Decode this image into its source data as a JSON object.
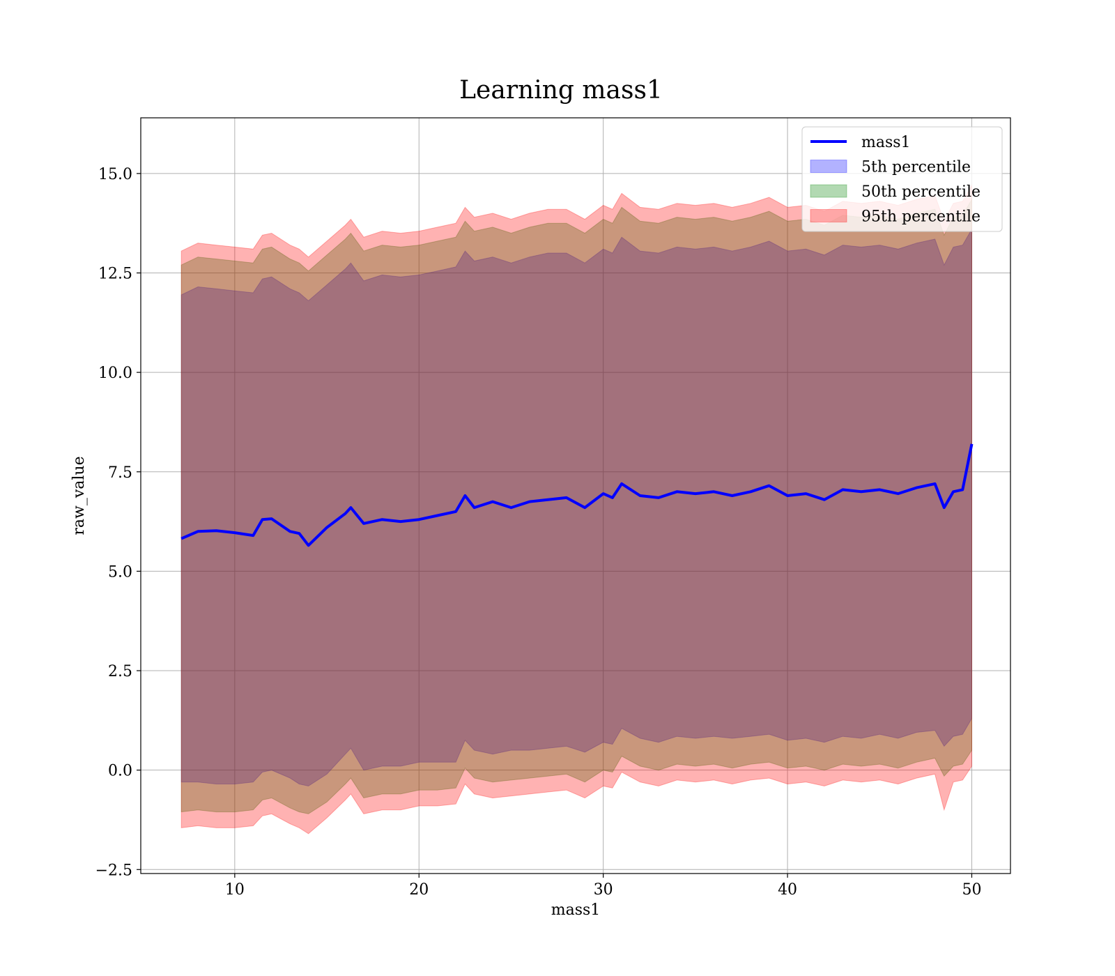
{
  "chart_data": {
    "type": "area",
    "title": "Learning mass1",
    "xlabel": "mass1",
    "ylabel": "raw_value",
    "xlim": [
      4.9,
      52.1
    ],
    "ylim": [
      -2.6,
      16.4
    ],
    "x_ticks": [
      10,
      20,
      30,
      40,
      50
    ],
    "x_tick_labels": [
      "10",
      "20",
      "30",
      "40",
      "50"
    ],
    "y_ticks": [
      -2.5,
      0.0,
      2.5,
      5.0,
      7.5,
      10.0,
      12.5,
      15.0
    ],
    "y_tick_labels": [
      "−2.5",
      "0.0",
      "2.5",
      "5.0",
      "7.5",
      "10.0",
      "12.5",
      "15.0"
    ],
    "grid": true,
    "legend_position": "top-right",
    "x": [
      7.1,
      8.0,
      9.0,
      10.0,
      11.0,
      11.5,
      12.0,
      13.0,
      13.5,
      14.0,
      15.0,
      16.0,
      16.3,
      17.0,
      18.0,
      19.0,
      20.0,
      21.0,
      22.0,
      22.5,
      23.0,
      24.0,
      25.0,
      26.0,
      27.0,
      28.0,
      29.0,
      30.0,
      30.5,
      31.0,
      32.0,
      33.0,
      34.0,
      35.0,
      36.0,
      37.0,
      38.0,
      39.0,
      40.0,
      41.0,
      42.0,
      43.0,
      44.0,
      45.0,
      46.0,
      47.0,
      48.0,
      48.5,
      49.0,
      49.5,
      50.0
    ],
    "series": [
      {
        "name": "mass1",
        "kind": "line",
        "color": "#0000ff",
        "values": [
          5.82,
          6.0,
          6.02,
          5.97,
          5.9,
          6.3,
          6.32,
          6.0,
          5.95,
          5.65,
          6.1,
          6.45,
          6.6,
          6.2,
          6.3,
          6.25,
          6.3,
          6.4,
          6.5,
          6.9,
          6.6,
          6.75,
          6.6,
          6.75,
          6.8,
          6.85,
          6.6,
          6.95,
          6.85,
          7.2,
          6.9,
          6.85,
          7.0,
          6.95,
          7.0,
          6.9,
          7.0,
          7.15,
          6.9,
          6.95,
          6.8,
          7.05,
          7.0,
          7.05,
          6.95,
          7.1,
          7.2,
          6.6,
          7.0,
          7.05,
          8.2
        ]
      },
      {
        "name": "5th percentile",
        "kind": "band",
        "color": "#0000ff",
        "alpha": 0.3,
        "lower": [
          -0.3,
          -0.3,
          -0.35,
          -0.35,
          -0.3,
          -0.05,
          -0.0,
          -0.2,
          -0.35,
          -0.4,
          -0.1,
          0.4,
          0.55,
          0.0,
          0.1,
          0.1,
          0.2,
          0.2,
          0.2,
          0.75,
          0.5,
          0.4,
          0.5,
          0.5,
          0.55,
          0.6,
          0.45,
          0.7,
          0.65,
          1.05,
          0.8,
          0.7,
          0.85,
          0.8,
          0.85,
          0.8,
          0.85,
          0.9,
          0.75,
          0.8,
          0.7,
          0.85,
          0.8,
          0.9,
          0.8,
          0.95,
          1.0,
          0.6,
          0.85,
          0.9,
          1.3
        ],
        "upper": [
          11.95,
          12.15,
          12.1,
          12.05,
          12.0,
          12.35,
          12.4,
          12.1,
          12.0,
          11.8,
          12.2,
          12.6,
          12.75,
          12.3,
          12.45,
          12.4,
          12.45,
          12.55,
          12.65,
          13.05,
          12.8,
          12.9,
          12.75,
          12.9,
          13.0,
          13.0,
          12.75,
          13.1,
          13.0,
          13.4,
          13.05,
          13.0,
          13.15,
          13.1,
          13.15,
          13.05,
          13.15,
          13.3,
          13.05,
          13.1,
          12.95,
          13.2,
          13.15,
          13.2,
          13.1,
          13.25,
          13.35,
          12.7,
          13.15,
          13.2,
          13.6
        ]
      },
      {
        "name": "50th percentile",
        "kind": "band",
        "color": "#008000",
        "alpha": 0.3,
        "lower": [
          -1.05,
          -1.0,
          -1.05,
          -1.05,
          -1.0,
          -0.75,
          -0.7,
          -0.95,
          -1.05,
          -1.1,
          -0.8,
          -0.35,
          -0.2,
          -0.7,
          -0.6,
          -0.6,
          -0.5,
          -0.5,
          -0.45,
          0.05,
          -0.2,
          -0.3,
          -0.25,
          -0.2,
          -0.15,
          -0.1,
          -0.3,
          0.0,
          -0.05,
          0.35,
          0.1,
          0.0,
          0.15,
          0.1,
          0.15,
          0.05,
          0.15,
          0.2,
          0.05,
          0.1,
          0.0,
          0.15,
          0.1,
          0.15,
          0.05,
          0.2,
          0.3,
          -0.15,
          0.1,
          0.15,
          0.5
        ],
        "upper": [
          12.7,
          12.9,
          12.85,
          12.8,
          12.75,
          13.1,
          13.15,
          12.85,
          12.75,
          12.55,
          12.95,
          13.35,
          13.5,
          13.05,
          13.2,
          13.15,
          13.2,
          13.3,
          13.4,
          13.8,
          13.55,
          13.65,
          13.5,
          13.65,
          13.75,
          13.75,
          13.5,
          13.85,
          13.75,
          14.15,
          13.8,
          13.75,
          13.9,
          13.85,
          13.9,
          13.8,
          13.9,
          14.05,
          13.8,
          13.85,
          13.7,
          13.95,
          13.9,
          13.95,
          13.85,
          14.0,
          14.1,
          13.45,
          13.9,
          13.95,
          14.35
        ]
      },
      {
        "name": "95th percentile",
        "kind": "band",
        "color": "#ff0000",
        "alpha": 0.3,
        "lower": [
          -1.45,
          -1.4,
          -1.45,
          -1.45,
          -1.4,
          -1.15,
          -1.1,
          -1.35,
          -1.45,
          -1.6,
          -1.2,
          -0.75,
          -0.6,
          -1.1,
          -1.0,
          -1.0,
          -0.9,
          -0.9,
          -0.85,
          -0.35,
          -0.6,
          -0.7,
          -0.65,
          -0.6,
          -0.55,
          -0.5,
          -0.7,
          -0.4,
          -0.45,
          -0.05,
          -0.3,
          -0.4,
          -0.25,
          -0.3,
          -0.25,
          -0.35,
          -0.25,
          -0.2,
          -0.35,
          -0.3,
          -0.4,
          -0.25,
          -0.3,
          -0.25,
          -0.35,
          -0.2,
          -0.1,
          -1.0,
          -0.3,
          -0.25,
          0.1
        ],
        "upper": [
          13.05,
          13.25,
          13.2,
          13.15,
          13.1,
          13.45,
          13.5,
          13.2,
          13.1,
          12.9,
          13.3,
          13.7,
          13.85,
          13.4,
          13.55,
          13.5,
          13.55,
          13.65,
          13.75,
          14.15,
          13.9,
          14.0,
          13.85,
          14.0,
          14.1,
          14.1,
          13.85,
          14.2,
          14.1,
          14.5,
          14.15,
          14.1,
          14.25,
          14.2,
          14.25,
          14.15,
          14.25,
          14.4,
          14.15,
          14.2,
          14.05,
          14.3,
          14.25,
          14.3,
          14.2,
          14.35,
          14.45,
          13.8,
          14.25,
          14.3,
          14.7
        ]
      }
    ]
  }
}
